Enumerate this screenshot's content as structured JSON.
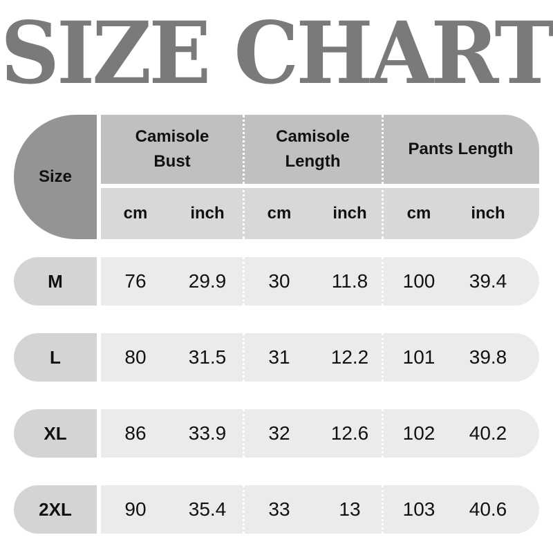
{
  "title": "SIZE CHART",
  "header": {
    "size": "Size",
    "groups": [
      "Camisole Bust",
      "Camisole Length",
      "Pants Length"
    ],
    "units": [
      "cm",
      "inch",
      "cm",
      "inch",
      "cm",
      "inch"
    ]
  },
  "rows": [
    {
      "size": "M",
      "values": [
        "76",
        "29.9",
        "30",
        "11.8",
        "100",
        "39.4"
      ]
    },
    {
      "size": "L",
      "values": [
        "80",
        "31.5",
        "31",
        "12.2",
        "101",
        "39.8"
      ]
    },
    {
      "size": "XL",
      "values": [
        "86",
        "33.9",
        "32",
        "12.6",
        "102",
        "40.2"
      ]
    },
    {
      "size": "2XL",
      "values": [
        "90",
        "35.4",
        "33",
        "13",
        "103",
        "40.6"
      ]
    }
  ],
  "colors": {
    "title": "#7a7a7a",
    "size_header": "#949494",
    "group_header": "#c0c0c0",
    "unit_header": "#d8d8d8",
    "size_cell": "#d4d4d4",
    "data_cell": "#ebebeb"
  }
}
